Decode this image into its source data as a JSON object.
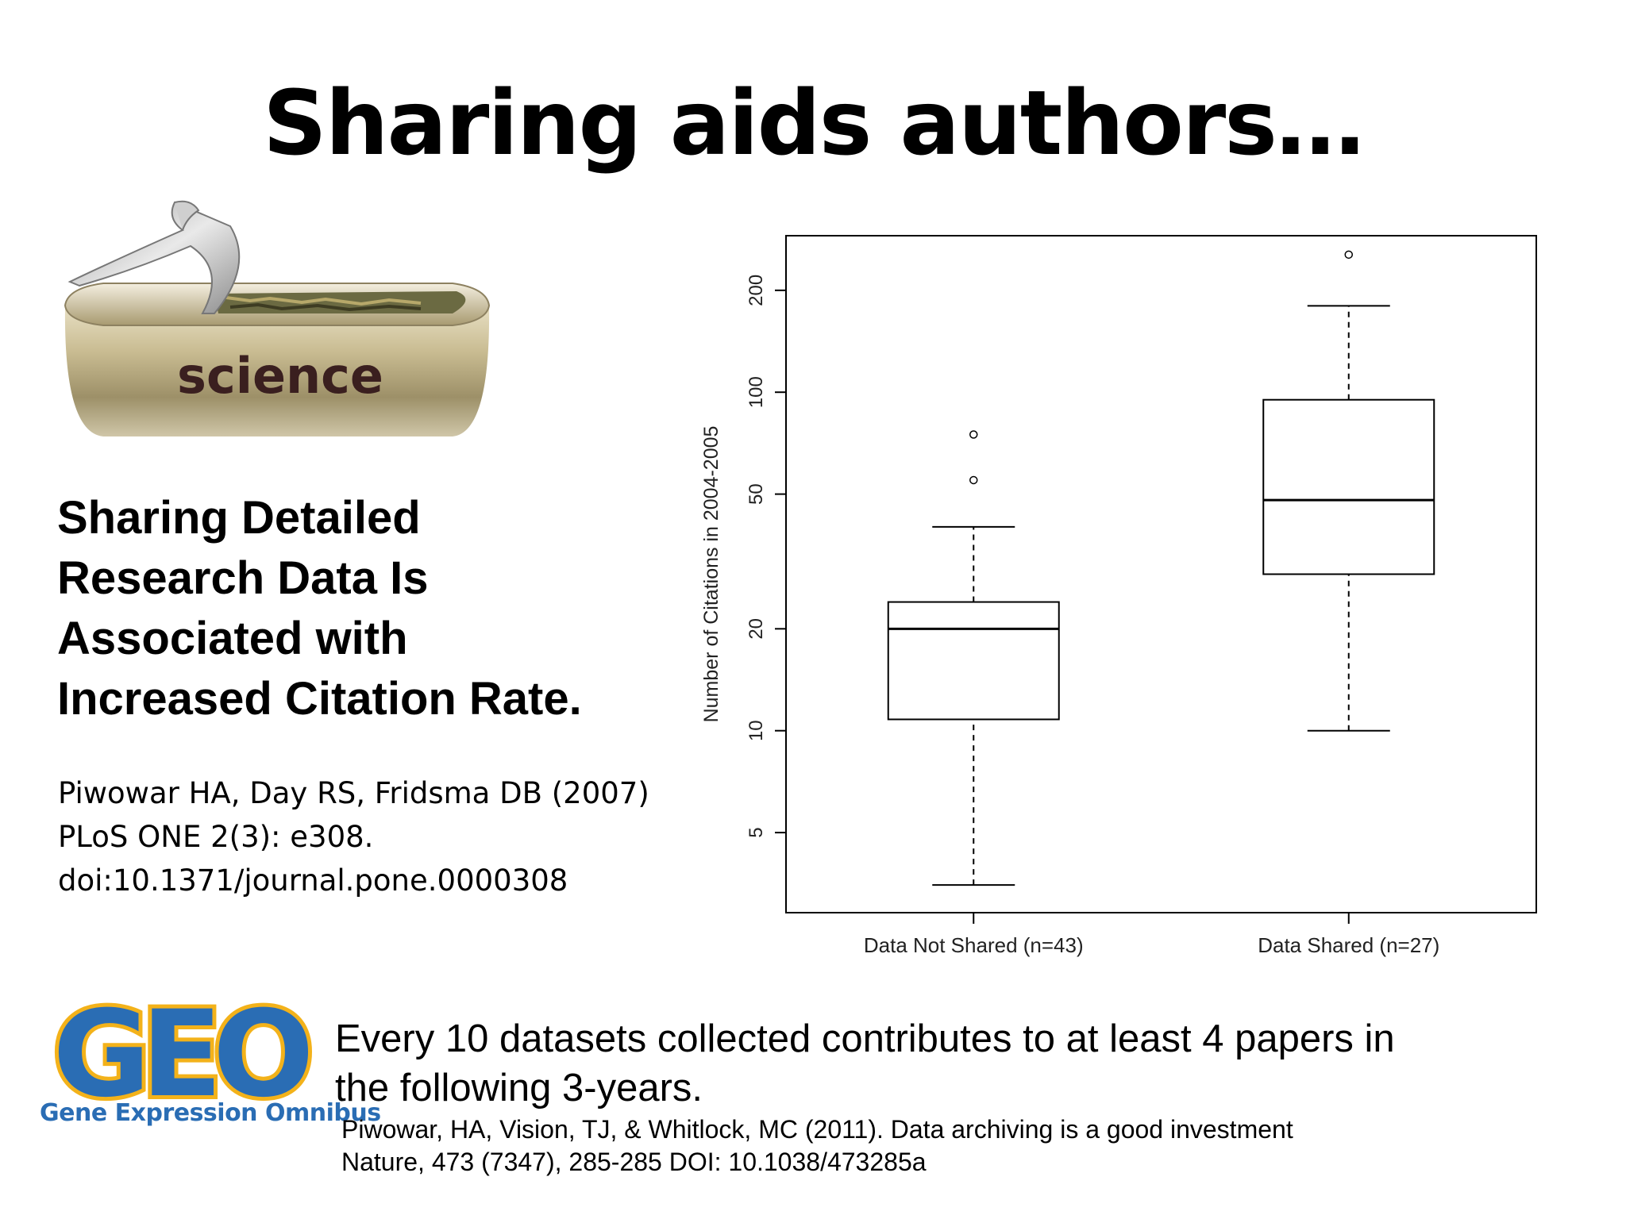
{
  "slide": {
    "title": "Sharing aids authors…"
  },
  "illustration": {
    "can_label": "science"
  },
  "headline": {
    "lines": [
      "Sharing Detailed",
      "Research Data Is",
      "Associated with",
      "Increased Citation Rate."
    ]
  },
  "reference_1": {
    "lines": [
      "Piwowar HA, Day RS, Fridsma DB (2007)",
      "PLoS ONE 2(3): e308.",
      "doi:10.1371/journal.pone.0000308"
    ]
  },
  "geo_logo": {
    "wordmark": "GEO",
    "subtitle": "Gene Expression Omnibus",
    "colors": {
      "blue": "#2a6db4",
      "gold": "#f3b21a"
    }
  },
  "claim": {
    "lines": [
      "Every 10 datasets collected contributes to at least 4 papers in",
      "the following 3-years."
    ]
  },
  "reference_2": {
    "lines": [
      "Piwowar, HA, Vision, TJ, & Whitlock, MC (2011). Data archiving is a good investment",
      "Nature, 473 (7347), 285-285 DOI: 10.1038/473285a"
    ]
  },
  "chart_data": {
    "type": "boxplot",
    "ylabel": "Number of Citations in 2004-2005",
    "yscale": "log",
    "ylim": [
      2.9,
      290
    ],
    "yticks": [
      5,
      10,
      20,
      50,
      100,
      200
    ],
    "categories": [
      "Data Not Shared (n=43)",
      "Data Shared (n=27)"
    ],
    "boxes": [
      {
        "whisker_low": 3.5,
        "q1": 10.8,
        "median": 20,
        "q3": 24,
        "whisker_high": 40,
        "outliers": [
          55,
          75
        ]
      },
      {
        "whisker_low": 10,
        "q1": 29,
        "median": 48,
        "q3": 95,
        "whisker_high": 180,
        "outliers": [
          255
        ]
      }
    ],
    "grid": false,
    "legend": "none"
  }
}
